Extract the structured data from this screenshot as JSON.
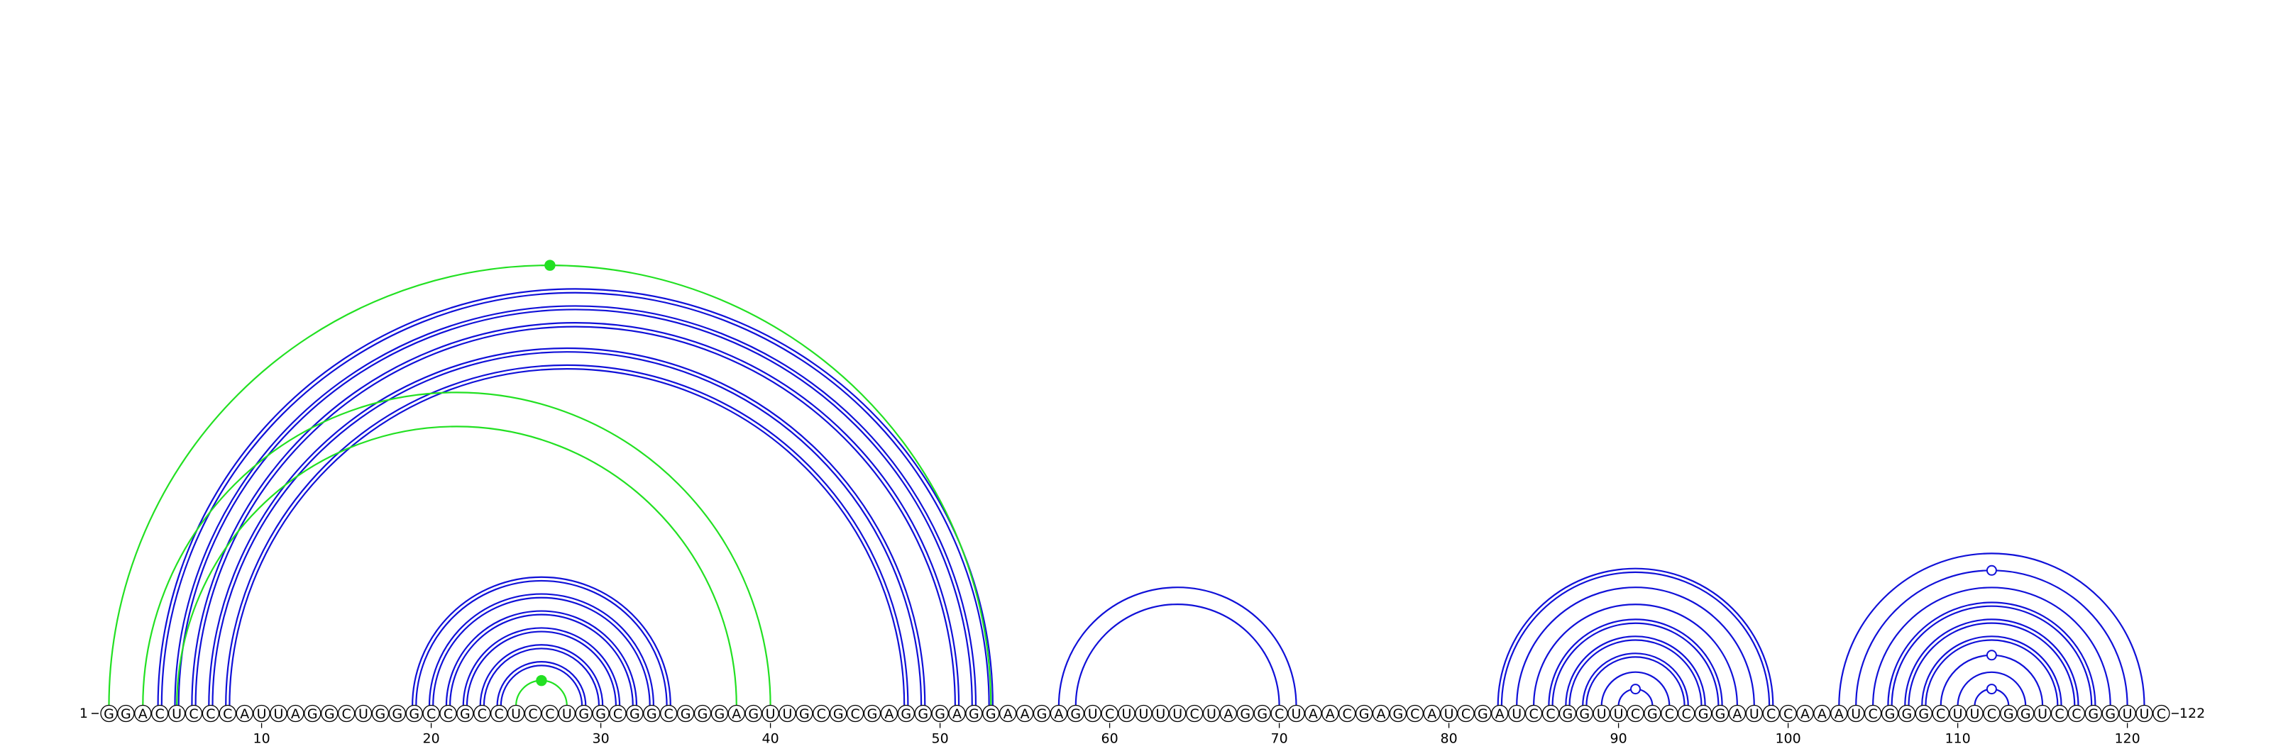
{
  "diagram": {
    "type": "rna-arc-diagram",
    "sequence": "GGACUCCCAUUAGGCUGGGCCGCCUCCUGGCGGCGGGAGUUGCGCGAGGGAGGAAGAGUCUUUUCUAGGCUAACGAGCAUCGAUCCGGUUCGCCGGAUCCAAAUCGGGCUUCGGUCCGGUUC",
    "start_label": "1",
    "end_label": "122",
    "tick_labels": [
      "10",
      "20",
      "30",
      "40",
      "50",
      "60",
      "70",
      "80",
      "90",
      "100",
      "110",
      "120"
    ],
    "colors": {
      "pair": "#1010d8",
      "highlight": "#22e022",
      "nucleotide_stroke": "#000000",
      "text": "#000000"
    },
    "arcs": [
      {
        "i": 4,
        "j": 53,
        "color": "pair",
        "double": true
      },
      {
        "i": 5,
        "j": 52,
        "color": "pair",
        "double": true
      },
      {
        "i": 6,
        "j": 51,
        "color": "pair",
        "double": true
      },
      {
        "i": 7,
        "j": 49,
        "color": "pair",
        "double": true
      },
      {
        "i": 8,
        "j": 48,
        "color": "pair",
        "double": true
      },
      {
        "i": 1,
        "j": 53,
        "color": "highlight",
        "double": false,
        "marker": "filled"
      },
      {
        "i": 3,
        "j": 40,
        "color": "highlight",
        "double": false
      },
      {
        "i": 5,
        "j": 38,
        "color": "highlight",
        "double": false
      },
      {
        "i": 19,
        "j": 34,
        "color": "pair",
        "double": true
      },
      {
        "i": 20,
        "j": 33,
        "color": "pair",
        "double": true
      },
      {
        "i": 21,
        "j": 32,
        "color": "pair",
        "double": true
      },
      {
        "i": 22,
        "j": 31,
        "color": "pair",
        "double": true
      },
      {
        "i": 23,
        "j": 30,
        "color": "pair",
        "double": true
      },
      {
        "i": 24,
        "j": 29,
        "color": "pair",
        "double": true
      },
      {
        "i": 25,
        "j": 28,
        "color": "highlight",
        "double": false,
        "marker": "filled"
      },
      {
        "i": 57,
        "j": 71,
        "color": "pair",
        "double": false
      },
      {
        "i": 58,
        "j": 70,
        "color": "pair",
        "double": false
      },
      {
        "i": 83,
        "j": 99,
        "color": "pair",
        "double": true
      },
      {
        "i": 84,
        "j": 98,
        "color": "pair",
        "double": false
      },
      {
        "i": 85,
        "j": 97,
        "color": "pair",
        "double": false
      },
      {
        "i": 86,
        "j": 96,
        "color": "pair",
        "double": true
      },
      {
        "i": 87,
        "j": 95,
        "color": "pair",
        "double": true
      },
      {
        "i": 88,
        "j": 94,
        "color": "pair",
        "double": true
      },
      {
        "i": 89,
        "j": 93,
        "color": "pair",
        "double": false
      },
      {
        "i": 90,
        "j": 92,
        "color": "pair",
        "double": false,
        "marker": "open"
      },
      {
        "i": 103,
        "j": 121,
        "color": "pair",
        "double": false
      },
      {
        "i": 104,
        "j": 120,
        "color": "pair",
        "double": false,
        "marker": "open"
      },
      {
        "i": 105,
        "j": 119,
        "color": "pair",
        "double": false
      },
      {
        "i": 106,
        "j": 118,
        "color": "pair",
        "double": true
      },
      {
        "i": 107,
        "j": 117,
        "color": "pair",
        "double": true
      },
      {
        "i": 108,
        "j": 116,
        "color": "pair",
        "double": true
      },
      {
        "i": 109,
        "j": 115,
        "color": "pair",
        "double": false,
        "marker": "open"
      },
      {
        "i": 110,
        "j": 114,
        "color": "pair",
        "double": false
      },
      {
        "i": 111,
        "j": 113,
        "color": "pair",
        "double": false,
        "marker": "open"
      }
    ]
  }
}
